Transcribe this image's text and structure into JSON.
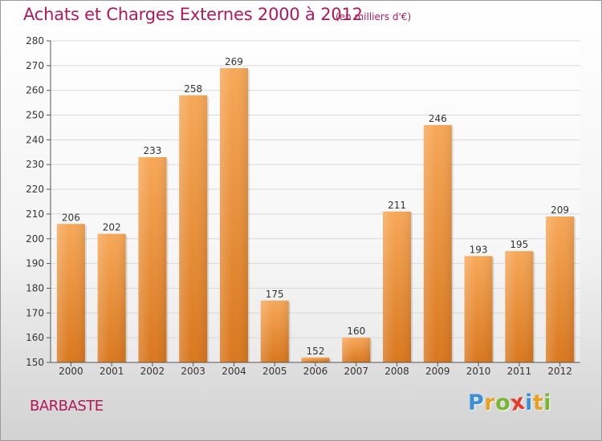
{
  "chart_data": {
    "type": "bar",
    "title": "Achats et Charges Externes 2000 à 2012",
    "subtitle": "(en milliers d'€)",
    "categories": [
      "2000",
      "2001",
      "2002",
      "2003",
      "2004",
      "2005",
      "2006",
      "2007",
      "2008",
      "2009",
      "2010",
      "2011",
      "2012"
    ],
    "values": [
      206,
      202,
      233,
      258,
      269,
      175,
      152,
      160,
      211,
      246,
      193,
      195,
      209
    ],
    "ylim": [
      150,
      280
    ],
    "yticks": [
      150,
      160,
      170,
      180,
      190,
      200,
      210,
      220,
      230,
      240,
      250,
      260,
      270,
      280
    ],
    "grid": true,
    "bar_color": "#f0963e",
    "bar_color_light": "#f7a858",
    "bar_color_dark": "#d9771e"
  },
  "commune": "BARBASTE",
  "logo": {
    "letters": [
      "P",
      "r",
      "o",
      "x",
      "i",
      "t",
      "i"
    ],
    "colors": [
      "#3a8fd8",
      "#e8a020",
      "#7ab534",
      "#e83a2a",
      "#3a8fd8",
      "#e8a020",
      "#7ab534"
    ]
  },
  "colors": {
    "title": "#b2185a",
    "grid": "#d9d9d9",
    "axis": "#555555"
  }
}
